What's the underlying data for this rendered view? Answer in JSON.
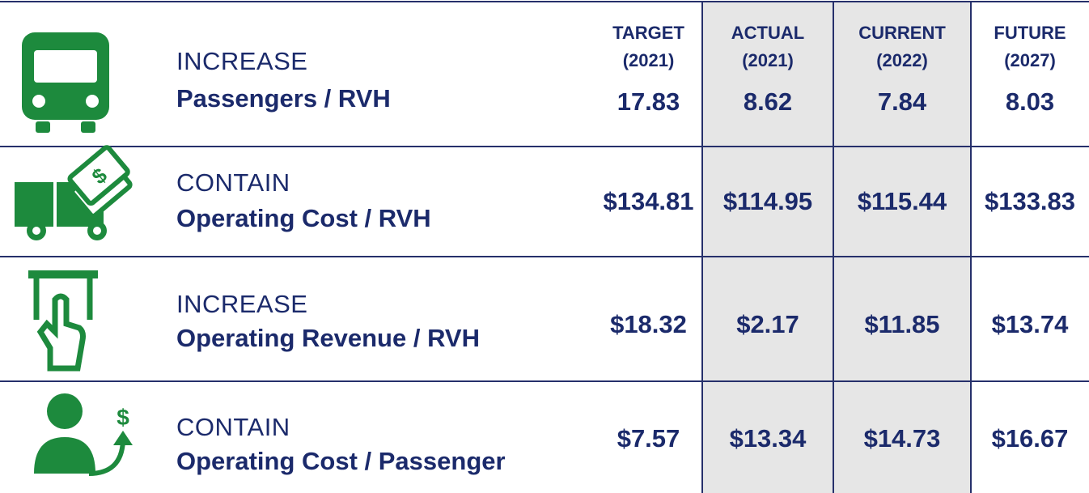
{
  "header": {
    "columns": [
      {
        "label": "TARGET",
        "year": "(2021)"
      },
      {
        "label": "ACTUAL",
        "year": "(2021)"
      },
      {
        "label": "CURRENT",
        "year": "(2022)"
      },
      {
        "label": "FUTURE",
        "year": "(2027)"
      }
    ]
  },
  "rows": [
    {
      "verb": "INCREASE",
      "metric": "Passengers / RVH",
      "values": [
        "17.83",
        "8.62",
        "7.84",
        "8.03"
      ]
    },
    {
      "verb": "CONTAIN",
      "metric": "Operating Cost / RVH",
      "values": [
        "$134.81",
        "$114.95",
        "$115.44",
        "$133.83"
      ]
    },
    {
      "verb": "INCREASE",
      "metric": "Operating Revenue / RVH",
      "values": [
        "$18.32",
        "$2.17",
        "$11.85",
        "$13.74"
      ]
    },
    {
      "verb": "CONTAIN",
      "metric": "Operating Cost / Passenger",
      "values": [
        "$7.57",
        "$13.34",
        "$14.73",
        "$16.67"
      ]
    }
  ]
}
